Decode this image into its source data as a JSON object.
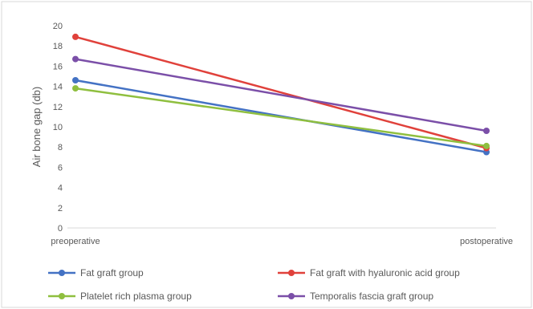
{
  "chart_data": {
    "type": "line",
    "title": "",
    "xlabel": "",
    "ylabel": "Air bone gap (db)",
    "categories": [
      "preoperative",
      "postoperative"
    ],
    "ylim": [
      0,
      20
    ],
    "yticks": [
      0,
      2,
      4,
      6,
      8,
      10,
      12,
      14,
      16,
      18,
      20
    ],
    "grid": false,
    "legend_position": "bottom",
    "series": [
      {
        "name": "Fat graft group",
        "color": "#4472c4",
        "values": [
          14.6,
          7.5
        ]
      },
      {
        "name": "Fat graft with hyaluronic acid group",
        "color": "#e0413b",
        "values": [
          18.9,
          7.9
        ]
      },
      {
        "name": "Platelet rich plasma group",
        "color": "#8fbf3f",
        "values": [
          13.8,
          8.1
        ]
      },
      {
        "name": "Temporalis fascia graft group",
        "color": "#7b4fa8",
        "values": [
          16.7,
          9.6
        ]
      }
    ]
  }
}
